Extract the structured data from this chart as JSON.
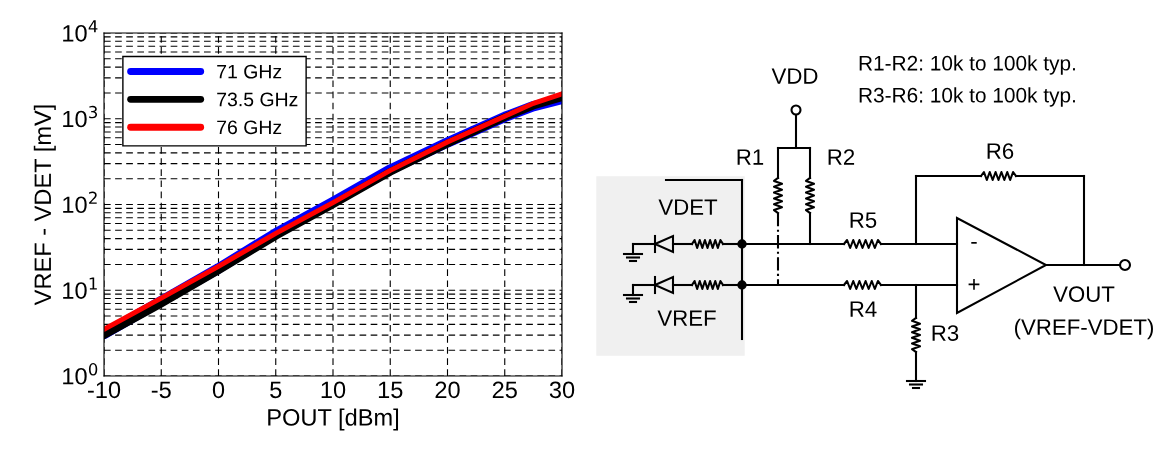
{
  "chart_data": [
    {
      "type": "line",
      "xlabel": "POUT [dBm]",
      "ylabel": "VREF - VDET [mV]",
      "x": [
        -10,
        -5,
        0,
        5,
        10,
        15,
        20,
        25,
        27.5,
        30
      ],
      "series": [
        {
          "name": "71 GHz",
          "color": "#0000ff",
          "values": [
            3.1,
            7.5,
            18,
            46,
            107,
            255,
            530,
            1050,
            1400,
            1700
          ]
        },
        {
          "name": "73.5 GHz",
          "color": "#000000",
          "values": [
            3.0,
            7,
            17,
            43,
            100,
            240,
            515,
            1040,
            1420,
            1780
          ]
        },
        {
          "name": "76 GHz",
          "color": "#ff0000",
          "values": [
            3.5,
            8.1,
            19,
            46,
            105,
            250,
            535,
            1070,
            1510,
            1950
          ]
        }
      ],
      "log": "y",
      "xlim": [
        -10,
        30
      ],
      "xticks": [
        -10,
        -5,
        0,
        5,
        10,
        15,
        20,
        25,
        30
      ],
      "ylim": [
        1,
        10000
      ],
      "yticks": [
        {
          "value": 1,
          "label": "10$^{0}$"
        },
        {
          "value": 10,
          "label": "10$^{1}$"
        },
        {
          "value": 100,
          "label": "10$^{2}$"
        },
        {
          "value": 1000,
          "label": "10$^{3}$"
        },
        {
          "value": 10000,
          "label": "10$^{4}$"
        }
      ],
      "grid": true,
      "legend": "top left",
      "marker": "none",
      "line_style": "solid"
    },
    {
      "type": "other",
      "annotations": [
        "R1-R2: 10k to 100k typ.",
        "R3-R6: 10k to 100k typ.",
        "VDD",
        "R1",
        "R2",
        "R6",
        "VDET",
        "R5",
        "-",
        "+",
        "VREF",
        "R4",
        "R3",
        "VOUT",
        "(VREF-VDET)"
      ]
    }
  ]
}
